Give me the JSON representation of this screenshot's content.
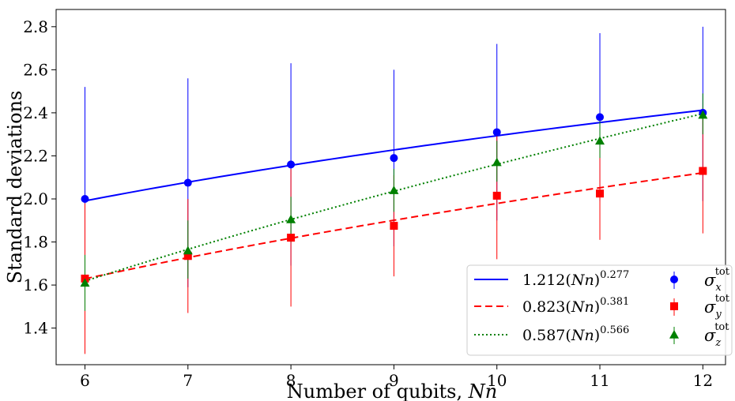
{
  "chart_data": {
    "type": "scatter",
    "xlabel": "Number of qubits, ",
    "xlabel_italic": "Nn",
    "ylabel": "Standard deviations",
    "xlim": [
      5.72,
      12.22
    ],
    "ylim": [
      1.23,
      2.88
    ],
    "x_ticks": [
      6,
      7,
      8,
      9,
      10,
      11,
      12
    ],
    "x_tick_labels": [
      "6",
      "7",
      "8",
      "9",
      "10",
      "11",
      "12"
    ],
    "y_ticks": [
      1.4,
      1.6,
      1.8,
      2.0,
      2.2,
      2.4,
      2.6,
      2.8
    ],
    "y_tick_labels": [
      "1.4",
      "1.6",
      "1.8",
      "2.0",
      "2.2",
      "2.4",
      "2.6",
      "2.8"
    ],
    "grid": false,
    "legend_position": "bottom-right",
    "x": [
      6,
      7,
      8,
      9,
      10,
      11,
      12
    ],
    "series": [
      {
        "name": "σ_x^tot",
        "marker": "circle",
        "color": "#0000ff",
        "values": [
          2.0,
          2.075,
          2.16,
          2.19,
          2.31,
          2.38,
          2.4
        ],
        "err_low": [
          1.48,
          1.59,
          1.69,
          1.78,
          1.9,
          1.99,
          1.99
        ],
        "err_high": [
          2.52,
          2.56,
          2.63,
          2.6,
          2.72,
          2.77,
          2.8
        ]
      },
      {
        "name": "σ_y^tot",
        "marker": "square",
        "color": "#ff0000",
        "values": [
          1.63,
          1.735,
          1.82,
          1.875,
          2.015,
          2.025,
          2.13
        ],
        "err_low": [
          1.28,
          1.47,
          1.5,
          1.64,
          1.72,
          1.81,
          1.84
        ],
        "err_high": [
          1.98,
          2.0,
          2.14,
          2.11,
          2.31,
          2.24,
          2.42
        ]
      },
      {
        "name": "σ_z^tot",
        "marker": "triangle",
        "color": "#008000",
        "values": [
          1.61,
          1.76,
          1.905,
          2.04,
          2.17,
          2.27,
          2.39
        ],
        "err_low": [
          1.48,
          1.63,
          1.8,
          1.94,
          2.08,
          2.19,
          2.3
        ],
        "err_high": [
          1.74,
          1.9,
          2.01,
          2.14,
          2.27,
          2.36,
          2.49
        ]
      }
    ],
    "fits": [
      {
        "coef": 1.212,
        "exponent": 0.277,
        "label_coef": "1.212(",
        "label_var": "Nn",
        "label_close": ")",
        "label_exp": "0.277",
        "color": "#0000ff",
        "style": "solid"
      },
      {
        "coef": 0.823,
        "exponent": 0.381,
        "label_coef": "0.823(",
        "label_var": "Nn",
        "label_close": ")",
        "label_exp": "0.381",
        "color": "#ff0000",
        "style": "dashed"
      },
      {
        "coef": 0.587,
        "exponent": 0.566,
        "label_coef": "0.587(",
        "label_var": "Nn",
        "label_close": ")",
        "label_exp": "0.566",
        "color": "#008000",
        "style": "dotted"
      }
    ],
    "legend_markers": [
      {
        "sym": "σ",
        "sub": "x",
        "sup": "tot"
      },
      {
        "sym": "σ",
        "sub": "y",
        "sup": "tot"
      },
      {
        "sym": "σ",
        "sub": "z",
        "sup": "tot"
      }
    ]
  }
}
